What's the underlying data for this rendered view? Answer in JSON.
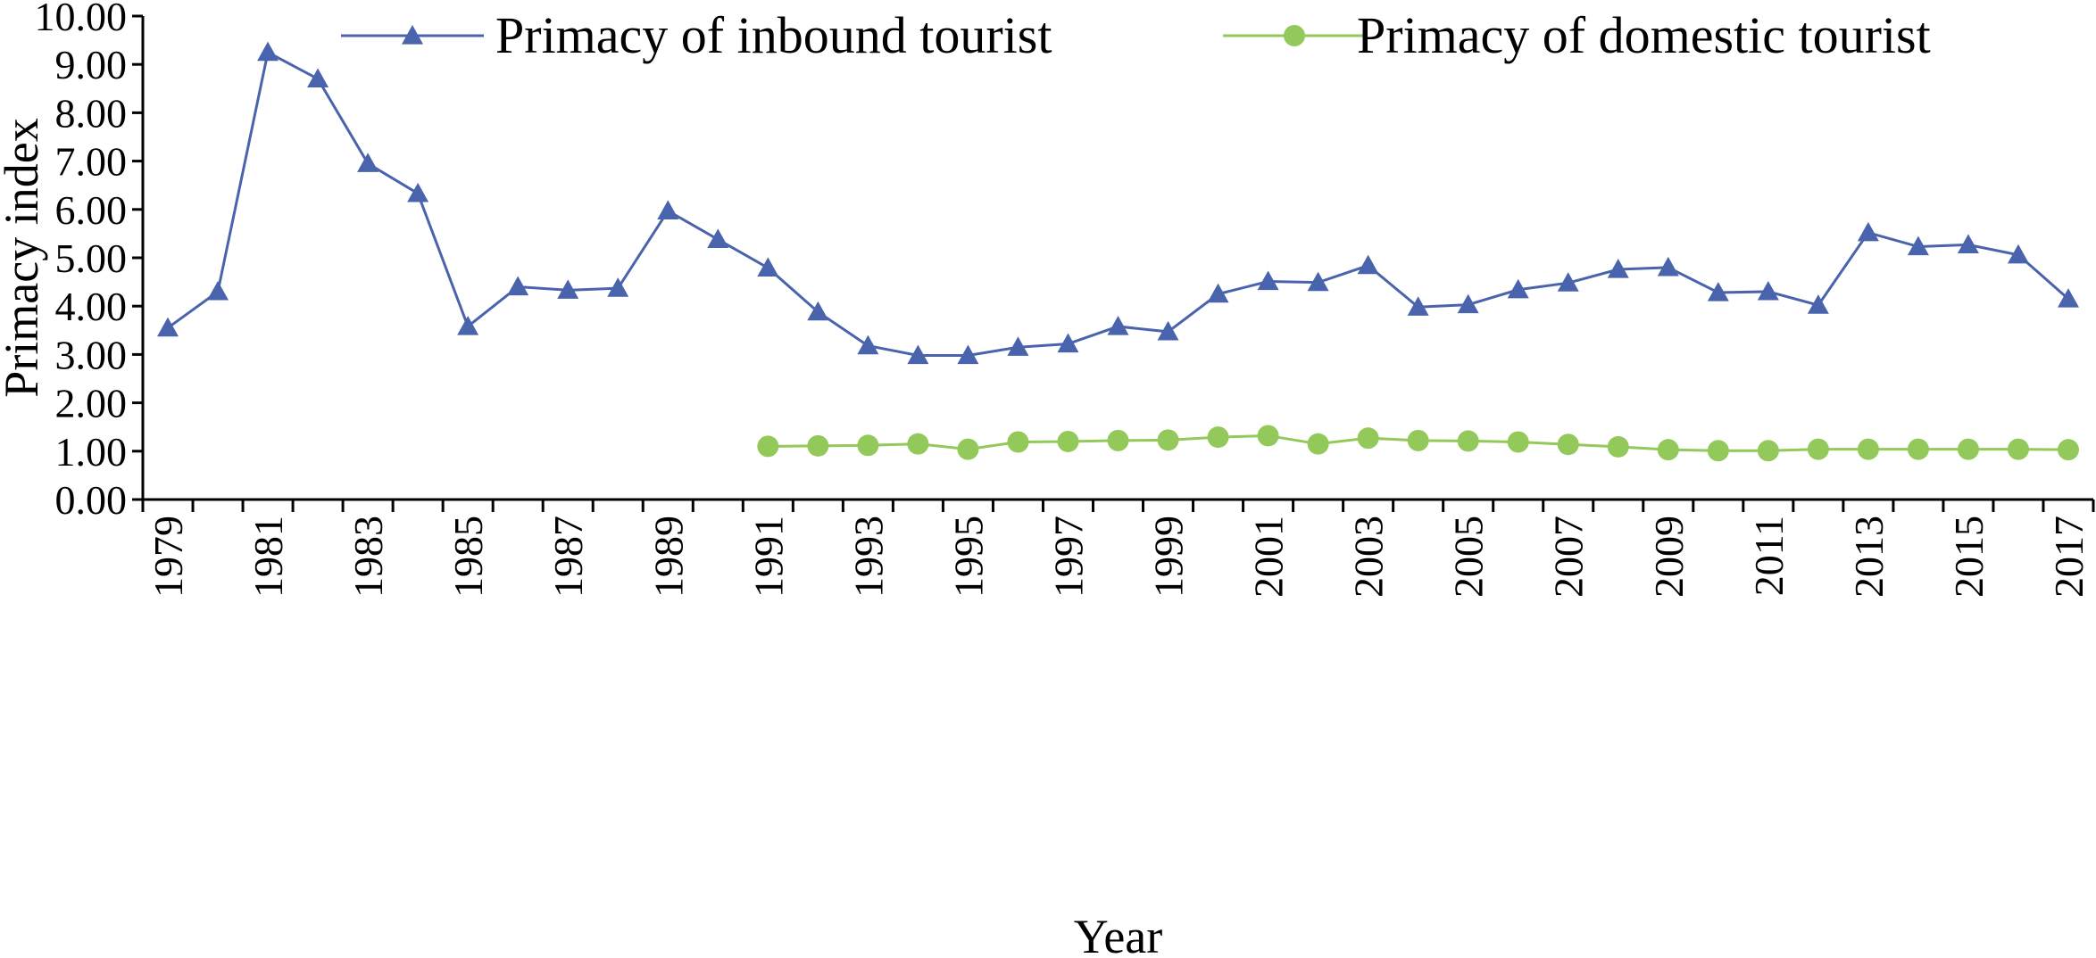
{
  "chart_data": {
    "type": "line",
    "title": "",
    "xlabel": "Year",
    "ylabel": "Primacy index",
    "ylim": [
      0,
      10
    ],
    "yticks": [
      "0.00",
      "1.00",
      "2.00",
      "3.00",
      "4.00",
      "5.00",
      "6.00",
      "7.00",
      "8.00",
      "9.00",
      "10.00"
    ],
    "x": [
      1979,
      1980,
      1981,
      1982,
      1983,
      1984,
      1985,
      1986,
      1987,
      1988,
      1989,
      1990,
      1991,
      1992,
      1993,
      1994,
      1995,
      1996,
      1997,
      1998,
      1999,
      2000,
      2001,
      2002,
      2003,
      2004,
      2005,
      2006,
      2007,
      2008,
      2009,
      2010,
      2011,
      2012,
      2013,
      2014,
      2015,
      2016,
      2017
    ],
    "xtick_labels": [
      "1979",
      "1981",
      "1983",
      "1985",
      "1987",
      "1989",
      "1991",
      "1993",
      "1995",
      "1997",
      "1999",
      "2001",
      "2003",
      "2005",
      "2007",
      "2009",
      "2011",
      "2013",
      "2015",
      "2017"
    ],
    "grid": false,
    "legend_position": "top",
    "series": [
      {
        "name": "Primacy of inbound tourist",
        "color": "#4a63ad",
        "marker": "triangle",
        "values": [
          3.55,
          4.3,
          9.25,
          8.7,
          6.95,
          6.33,
          3.58,
          4.4,
          4.33,
          4.37,
          5.97,
          5.38,
          4.79,
          3.88,
          3.18,
          2.98,
          2.98,
          3.15,
          3.22,
          3.58,
          3.47,
          4.25,
          4.51,
          4.49,
          4.84,
          3.98,
          4.03,
          4.34,
          4.48,
          4.76,
          4.8,
          4.28,
          4.3,
          4.02,
          5.52,
          5.23,
          5.27,
          5.06,
          4.15
        ]
      },
      {
        "name": "Primacy of domestic tourist",
        "color": "#92c95a",
        "marker": "circle",
        "values": [
          null,
          null,
          null,
          null,
          null,
          null,
          null,
          null,
          null,
          null,
          null,
          null,
          1.1,
          1.11,
          1.12,
          1.15,
          1.04,
          1.19,
          1.2,
          1.22,
          1.23,
          1.29,
          1.32,
          1.15,
          1.27,
          1.22,
          1.21,
          1.19,
          1.14,
          1.09,
          1.03,
          1.01,
          1.01,
          1.04,
          1.04,
          1.04,
          1.04,
          1.04,
          1.03
        ]
      }
    ]
  }
}
